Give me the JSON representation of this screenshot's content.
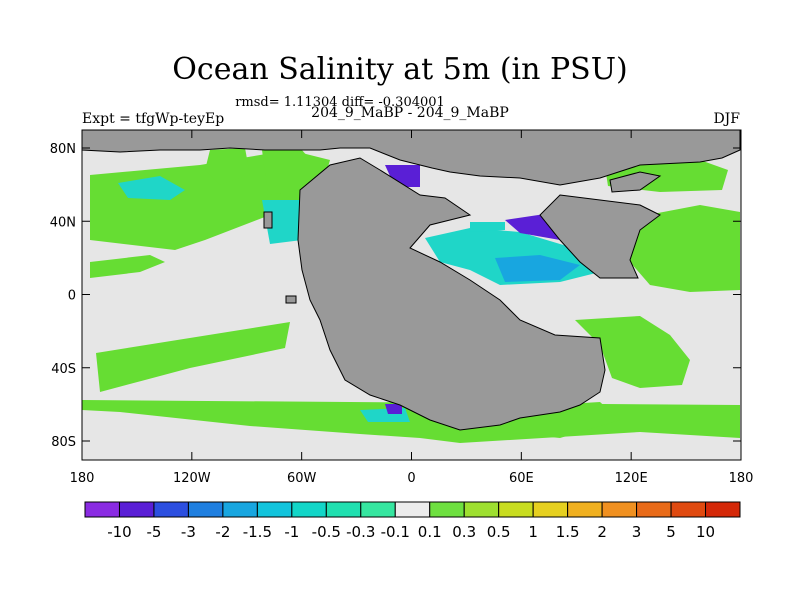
{
  "title": "Ocean Salinity at 5m (in PSU)",
  "stats": "rmsd= 1.11304 diff= -0.304001",
  "experiment": "Expt = tfgWp-teyEp",
  "comparison": "204_9_MaBP - 204_9_MaBP",
  "season": "DJF",
  "colors": {
    "ocean_background": "#e6e6e6",
    "land": "#999999",
    "frame": "#000000"
  },
  "chart_data": {
    "type": "heatmap",
    "x_ticks": [
      "180",
      "120W",
      "60W",
      "0",
      "60E",
      "120E",
      "180"
    ],
    "y_ticks": [
      "80N",
      "40N",
      "0",
      "40S",
      "80S"
    ],
    "colorbar": {
      "labels": [
        "-10",
        "-5",
        "-3",
        "-2",
        "-1.5",
        "-1",
        "-0.5",
        "-0.3",
        "-0.1",
        "0.1",
        "0.3",
        "0.5",
        "1",
        "1.5",
        "2",
        "3",
        "5",
        "10"
      ],
      "colors": [
        "#8a2be2",
        "#5a1fd6",
        "#2c4fe0",
        "#1f7fe0",
        "#18a6e0",
        "#12c4dc",
        "#12d6c8",
        "#20e0b0",
        "#36e6a0",
        "#ececec",
        "#6ee040",
        "#9ee030",
        "#c8dc20",
        "#e6d020",
        "#f0b020",
        "#f09020",
        "#e86a18",
        "#e04a10",
        "#d42808"
      ]
    }
  }
}
